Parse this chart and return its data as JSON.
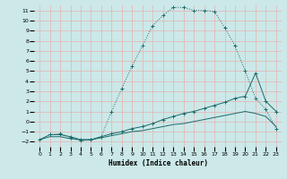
{
  "xlabel": "Humidex (Indice chaleur)",
  "bg_color": "#cce8e8",
  "line_color": "#1a6b6b",
  "grid_color": "#b0d8d8",
  "xlim": [
    -0.5,
    23.5
  ],
  "ylim": [
    -2.5,
    11.5
  ],
  "xticks": [
    0,
    1,
    2,
    3,
    4,
    5,
    6,
    7,
    8,
    9,
    10,
    11,
    12,
    13,
    14,
    15,
    16,
    17,
    18,
    19,
    20,
    21,
    22,
    23
  ],
  "yticks": [
    -2,
    -1,
    0,
    1,
    2,
    3,
    4,
    5,
    6,
    7,
    8,
    9,
    10,
    11
  ],
  "curve1_x": [
    1,
    2,
    3,
    4,
    5,
    6,
    7,
    8,
    9,
    10,
    11,
    12,
    13,
    14,
    15,
    16,
    17,
    18,
    19,
    20,
    21,
    22,
    23
  ],
  "curve1_y": [
    -1.3,
    -1.2,
    -1.6,
    -1.9,
    -1.8,
    -1.5,
    1.0,
    3.3,
    5.5,
    7.5,
    9.5,
    10.5,
    11.3,
    11.3,
    11.0,
    11.0,
    10.9,
    9.3,
    7.5,
    5.0,
    2.3,
    1.2,
    -0.7
  ],
  "curve2_x": [
    0,
    1,
    2,
    3,
    4,
    5,
    6,
    7,
    8,
    9,
    10,
    11,
    12,
    13,
    14,
    15,
    16,
    17,
    18,
    19,
    20,
    21,
    22,
    23
  ],
  "curve2_y": [
    -1.8,
    -1.3,
    -1.3,
    -1.5,
    -1.8,
    -1.8,
    -1.5,
    -1.2,
    -1.0,
    -0.7,
    -0.5,
    -0.2,
    0.2,
    0.5,
    0.8,
    1.0,
    1.3,
    1.6,
    1.9,
    2.3,
    2.5,
    4.8,
    2.0,
    1.0
  ],
  "curve3_x": [
    0,
    1,
    2,
    3,
    4,
    5,
    6,
    7,
    8,
    9,
    10,
    11,
    12,
    13,
    14,
    15,
    16,
    17,
    18,
    19,
    20,
    21,
    22,
    23
  ],
  "curve3_y": [
    -1.8,
    -1.5,
    -1.5,
    -1.7,
    -1.8,
    -1.8,
    -1.6,
    -1.4,
    -1.2,
    -1.0,
    -0.9,
    -0.7,
    -0.5,
    -0.3,
    -0.2,
    0.0,
    0.2,
    0.4,
    0.6,
    0.8,
    1.0,
    0.8,
    0.5,
    -0.5
  ]
}
